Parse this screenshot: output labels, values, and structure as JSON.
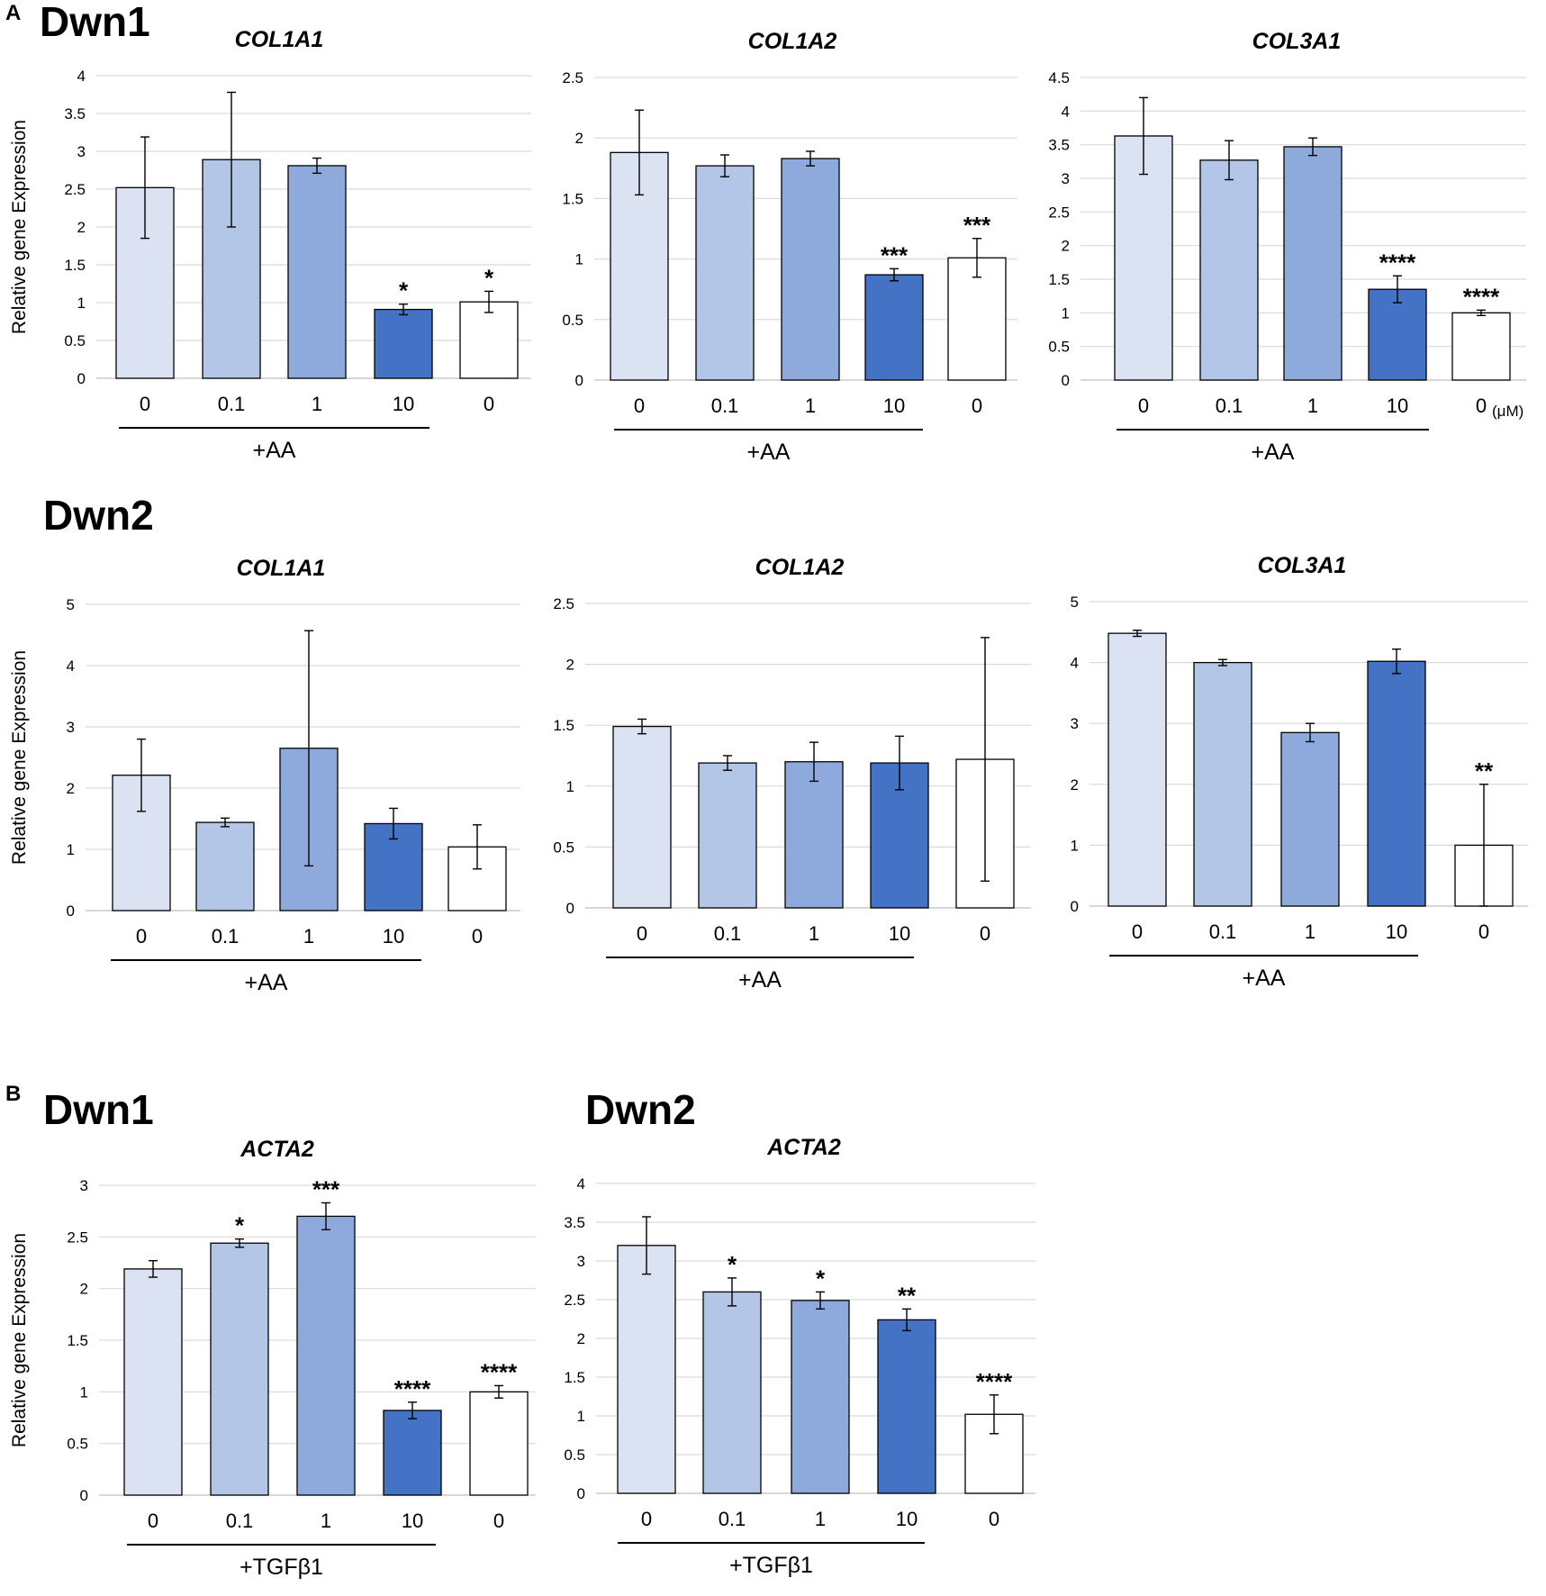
{
  "panels": [
    {
      "letter": "A",
      "donor_labels": [
        "Dwn1",
        "Dwn2"
      ]
    },
    {
      "letter": "B",
      "donor_labels": [
        "Dwn1",
        "Dwn2"
      ]
    }
  ],
  "colors": {
    "c0": "#dbe3f2",
    "c1": "#b4c6e7",
    "c2": "#8eaadc",
    "c3": "#4472c4",
    "c4": "#ffffff",
    "edge": "#000000",
    "grid": "#d9d9d9"
  },
  "chart_data": [
    {
      "id": "a1",
      "type": "bar",
      "title": "COL1A1",
      "ylabel": "Relative gene Expression",
      "categories": [
        "0",
        "0.1",
        "1",
        "10",
        "0"
      ],
      "values": [
        2.52,
        2.89,
        2.81,
        0.91,
        1.01
      ],
      "errors": [
        0.67,
        0.89,
        0.1,
        0.07,
        0.14
      ],
      "significance": [
        "",
        "",
        "",
        "*",
        "*"
      ],
      "ylim": [
        0,
        4
      ],
      "yticks": [
        "0",
        "0.5",
        "1",
        "1.5",
        "2",
        "2.5",
        "3",
        "3.5",
        "4"
      ],
      "group_label": "+AA"
    },
    {
      "id": "a2",
      "type": "bar",
      "title": "COL1A2",
      "ylabel": "",
      "categories": [
        "0",
        "0.1",
        "1",
        "10",
        "0"
      ],
      "values": [
        1.88,
        1.77,
        1.83,
        0.87,
        1.01
      ],
      "errors": [
        0.35,
        0.09,
        0.06,
        0.05,
        0.16
      ],
      "significance": [
        "",
        "",
        "",
        "***",
        "***"
      ],
      "ylim": [
        0,
        2.5
      ],
      "yticks": [
        "0",
        "0.5",
        "1",
        "1.5",
        "2",
        "2.5"
      ],
      "group_label": "+AA"
    },
    {
      "id": "a3",
      "type": "bar",
      "title": "COL3A1",
      "ylabel": "",
      "categories": [
        "0",
        "0.1",
        "1",
        "10",
        "0"
      ],
      "unit": "(μM)",
      "values": [
        3.63,
        3.27,
        3.47,
        1.35,
        1.0
      ],
      "errors": [
        0.57,
        0.29,
        0.13,
        0.2,
        0.04
      ],
      "significance": [
        "",
        "",
        "",
        "****",
        "****"
      ],
      "ylim": [
        0,
        4.5
      ],
      "yticks": [
        "0",
        "0.5",
        "1",
        "1.5",
        "2",
        "2.5",
        "3",
        "3.5",
        "4",
        "4.5"
      ],
      "group_label": "+AA"
    },
    {
      "id": "a4",
      "type": "bar",
      "title": "COL1A1",
      "ylabel": "Relative gene Expression",
      "categories": [
        "0",
        "0.1",
        "1",
        "10",
        "0"
      ],
      "values": [
        2.21,
        1.44,
        2.65,
        1.42,
        1.04
      ],
      "errors": [
        0.59,
        0.07,
        1.92,
        0.25,
        0.36
      ],
      "significance": [
        "",
        "",
        "",
        "",
        ""
      ],
      "ylim": [
        0,
        5
      ],
      "yticks": [
        "0",
        "1",
        "2",
        "3",
        "4",
        "5"
      ],
      "group_label": "+AA"
    },
    {
      "id": "a5",
      "type": "bar",
      "title": "COL1A2",
      "ylabel": "",
      "categories": [
        "0",
        "0.1",
        "1",
        "10",
        "0"
      ],
      "values": [
        1.49,
        1.19,
        1.2,
        1.19,
        1.22
      ],
      "errors": [
        0.06,
        0.06,
        0.16,
        0.22,
        1.0
      ],
      "significance": [
        "",
        "",
        "",
        "",
        ""
      ],
      "ylim": [
        0,
        2.5
      ],
      "yticks": [
        "0",
        "0.5",
        "1",
        "1.5",
        "2",
        "2.5"
      ],
      "group_label": "+AA"
    },
    {
      "id": "a6",
      "type": "bar",
      "title": "COL3A1",
      "ylabel": "",
      "categories": [
        "0",
        "0.1",
        "1",
        "10",
        "0"
      ],
      "values": [
        4.48,
        4.0,
        2.85,
        4.02,
        1.0
      ],
      "errors": [
        0.05,
        0.05,
        0.15,
        0.2,
        1.0
      ],
      "significance": [
        "",
        "",
        "",
        "",
        "**"
      ],
      "ylim": [
        0,
        5
      ],
      "yticks": [
        "0",
        "1",
        "2",
        "3",
        "4",
        "5"
      ],
      "group_label": "+AA"
    },
    {
      "id": "b1",
      "type": "bar",
      "title": "ACTA2",
      "ylabel": "Relative gene Expression",
      "categories": [
        "0",
        "0.1",
        "1",
        "10",
        "0"
      ],
      "values": [
        2.19,
        2.44,
        2.7,
        0.82,
        1.0
      ],
      "errors": [
        0.08,
        0.04,
        0.13,
        0.08,
        0.06
      ],
      "significance": [
        "",
        "*",
        "***",
        "****",
        "****"
      ],
      "ylim": [
        0,
        3
      ],
      "yticks": [
        "0",
        "0.5",
        "1",
        "1.5",
        "2",
        "2.5",
        "3"
      ],
      "group_label": "+TGFβ1"
    },
    {
      "id": "b2",
      "type": "bar",
      "title": "ACTA2",
      "ylabel": "",
      "categories": [
        "0",
        "0.1",
        "1",
        "10",
        "0"
      ],
      "values": [
        3.2,
        2.6,
        2.49,
        2.24,
        1.02
      ],
      "errors": [
        0.37,
        0.18,
        0.11,
        0.14,
        0.25
      ],
      "significance": [
        "",
        "*",
        "*",
        "**",
        "****"
      ],
      "ylim": [
        0,
        4
      ],
      "yticks": [
        "0",
        "0.5",
        "1",
        "1.5",
        "2",
        "2.5",
        "3",
        "3.5",
        "4"
      ],
      "group_label": "+TGFβ1"
    }
  ]
}
